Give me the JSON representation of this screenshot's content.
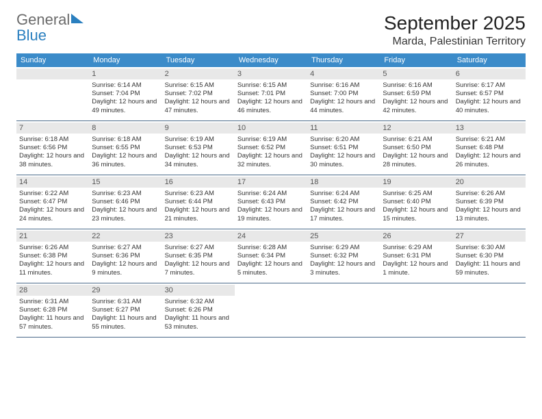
{
  "logo": {
    "general": "General",
    "blue": "Blue"
  },
  "title": "September 2025",
  "location": "Marda, Palestinian Territory",
  "dow": [
    "Sunday",
    "Monday",
    "Tuesday",
    "Wednesday",
    "Thursday",
    "Friday",
    "Saturday"
  ],
  "colors": {
    "header_bg": "#3b8bc9",
    "header_text": "#ffffff",
    "daynum_bg": "#e8e8e8",
    "row_border": "#4a6a8a",
    "logo_blue": "#2a7fbf",
    "logo_gray": "#6b6b6b"
  },
  "weeks": [
    [
      null,
      {
        "n": "1",
        "sunrise": "6:14 AM",
        "sunset": "7:04 PM",
        "daylight": "12 hours and 49 minutes."
      },
      {
        "n": "2",
        "sunrise": "6:15 AM",
        "sunset": "7:02 PM",
        "daylight": "12 hours and 47 minutes."
      },
      {
        "n": "3",
        "sunrise": "6:15 AM",
        "sunset": "7:01 PM",
        "daylight": "12 hours and 46 minutes."
      },
      {
        "n": "4",
        "sunrise": "6:16 AM",
        "sunset": "7:00 PM",
        "daylight": "12 hours and 44 minutes."
      },
      {
        "n": "5",
        "sunrise": "6:16 AM",
        "sunset": "6:59 PM",
        "daylight": "12 hours and 42 minutes."
      },
      {
        "n": "6",
        "sunrise": "6:17 AM",
        "sunset": "6:57 PM",
        "daylight": "12 hours and 40 minutes."
      }
    ],
    [
      {
        "n": "7",
        "sunrise": "6:18 AM",
        "sunset": "6:56 PM",
        "daylight": "12 hours and 38 minutes."
      },
      {
        "n": "8",
        "sunrise": "6:18 AM",
        "sunset": "6:55 PM",
        "daylight": "12 hours and 36 minutes."
      },
      {
        "n": "9",
        "sunrise": "6:19 AM",
        "sunset": "6:53 PM",
        "daylight": "12 hours and 34 minutes."
      },
      {
        "n": "10",
        "sunrise": "6:19 AM",
        "sunset": "6:52 PM",
        "daylight": "12 hours and 32 minutes."
      },
      {
        "n": "11",
        "sunrise": "6:20 AM",
        "sunset": "6:51 PM",
        "daylight": "12 hours and 30 minutes."
      },
      {
        "n": "12",
        "sunrise": "6:21 AM",
        "sunset": "6:50 PM",
        "daylight": "12 hours and 28 minutes."
      },
      {
        "n": "13",
        "sunrise": "6:21 AM",
        "sunset": "6:48 PM",
        "daylight": "12 hours and 26 minutes."
      }
    ],
    [
      {
        "n": "14",
        "sunrise": "6:22 AM",
        "sunset": "6:47 PM",
        "daylight": "12 hours and 24 minutes."
      },
      {
        "n": "15",
        "sunrise": "6:23 AM",
        "sunset": "6:46 PM",
        "daylight": "12 hours and 23 minutes."
      },
      {
        "n": "16",
        "sunrise": "6:23 AM",
        "sunset": "6:44 PM",
        "daylight": "12 hours and 21 minutes."
      },
      {
        "n": "17",
        "sunrise": "6:24 AM",
        "sunset": "6:43 PM",
        "daylight": "12 hours and 19 minutes."
      },
      {
        "n": "18",
        "sunrise": "6:24 AM",
        "sunset": "6:42 PM",
        "daylight": "12 hours and 17 minutes."
      },
      {
        "n": "19",
        "sunrise": "6:25 AM",
        "sunset": "6:40 PM",
        "daylight": "12 hours and 15 minutes."
      },
      {
        "n": "20",
        "sunrise": "6:26 AM",
        "sunset": "6:39 PM",
        "daylight": "12 hours and 13 minutes."
      }
    ],
    [
      {
        "n": "21",
        "sunrise": "6:26 AM",
        "sunset": "6:38 PM",
        "daylight": "12 hours and 11 minutes."
      },
      {
        "n": "22",
        "sunrise": "6:27 AM",
        "sunset": "6:36 PM",
        "daylight": "12 hours and 9 minutes."
      },
      {
        "n": "23",
        "sunrise": "6:27 AM",
        "sunset": "6:35 PM",
        "daylight": "12 hours and 7 minutes."
      },
      {
        "n": "24",
        "sunrise": "6:28 AM",
        "sunset": "6:34 PM",
        "daylight": "12 hours and 5 minutes."
      },
      {
        "n": "25",
        "sunrise": "6:29 AM",
        "sunset": "6:32 PM",
        "daylight": "12 hours and 3 minutes."
      },
      {
        "n": "26",
        "sunrise": "6:29 AM",
        "sunset": "6:31 PM",
        "daylight": "12 hours and 1 minute."
      },
      {
        "n": "27",
        "sunrise": "6:30 AM",
        "sunset": "6:30 PM",
        "daylight": "11 hours and 59 minutes."
      }
    ],
    [
      {
        "n": "28",
        "sunrise": "6:31 AM",
        "sunset": "6:28 PM",
        "daylight": "11 hours and 57 minutes."
      },
      {
        "n": "29",
        "sunrise": "6:31 AM",
        "sunset": "6:27 PM",
        "daylight": "11 hours and 55 minutes."
      },
      {
        "n": "30",
        "sunrise": "6:32 AM",
        "sunset": "6:26 PM",
        "daylight": "11 hours and 53 minutes."
      },
      null,
      null,
      null,
      null
    ]
  ]
}
